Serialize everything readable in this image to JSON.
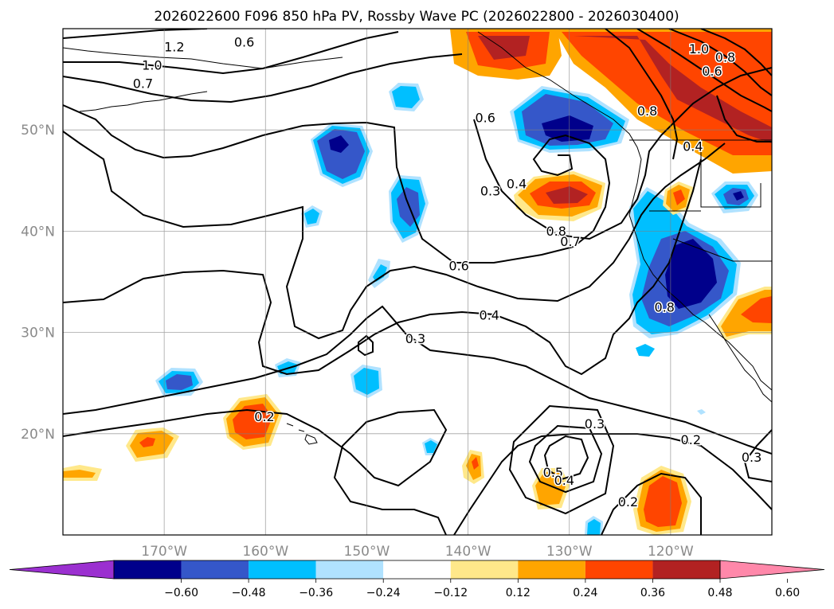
{
  "title": "2026022600 F096 850 hPa PV, Rossby Wave PC (2026022800 - 2026030400)",
  "map": {
    "lon_range": [
      -180,
      -110
    ],
    "lat_range": [
      10,
      60
    ],
    "lon_ticks": [
      "170°W",
      "160°W",
      "150°W",
      "140°W",
      "130°W",
      "120°W"
    ],
    "lat_ticks": [
      "20°N",
      "30°N",
      "40°N",
      "50°N"
    ],
    "grid": true
  },
  "colorbar": {
    "ticks": [
      "−0.60",
      "−0.48",
      "−0.36",
      "−0.24",
      "−0.12",
      "0.12",
      "0.24",
      "0.36",
      "0.48",
      "0.60"
    ],
    "colors": [
      "#9b30d0",
      "#00008b",
      "#3557c9",
      "#00bfff",
      "#b0e2ff",
      "#ffffff",
      "#ffe88a",
      "#ffa500",
      "#ff4500",
      "#b22222",
      "#ff88aa"
    ],
    "extend": "both"
  },
  "contour_labels": [
    {
      "text": "1.2",
      "lon": -169,
      "lat": 58.1
    },
    {
      "text": "0.6",
      "lon": -162.1,
      "lat": 58.6
    },
    {
      "text": "1.0",
      "lon": -171.2,
      "lat": 56.3
    },
    {
      "text": "0.7",
      "lon": -172.1,
      "lat": 54.5
    },
    {
      "text": "0.6",
      "lon": -138.3,
      "lat": 51.1
    },
    {
      "text": "0.3",
      "lon": -137.8,
      "lat": 43.9
    },
    {
      "text": "0.4",
      "lon": -135.2,
      "lat": 44.6
    },
    {
      "text": "0.8",
      "lon": -131.3,
      "lat": 39.9
    },
    {
      "text": "0.7",
      "lon": -129.9,
      "lat": 38.9
    },
    {
      "text": "0.6",
      "lon": -140.9,
      "lat": 36.5
    },
    {
      "text": "0.4",
      "lon": -137.9,
      "lat": 31.6
    },
    {
      "text": "0.3",
      "lon": -145.2,
      "lat": 29.3
    },
    {
      "text": "1.0",
      "lon": -117.2,
      "lat": 57.9
    },
    {
      "text": "0.8",
      "lon": -114.6,
      "lat": 57.1
    },
    {
      "text": "0.6",
      "lon": -115.9,
      "lat": 55.7
    },
    {
      "text": "0.8",
      "lon": -122.3,
      "lat": 51.8
    },
    {
      "text": "0.4",
      "lon": -117.8,
      "lat": 48.3
    },
    {
      "text": "0.8",
      "lon": -120.6,
      "lat": 32.4
    },
    {
      "text": "0.2",
      "lon": -160.1,
      "lat": 21.6
    },
    {
      "text": "0.3",
      "lon": -127.5,
      "lat": 20.9
    },
    {
      "text": "0.2",
      "lon": -118,
      "lat": 19.3
    },
    {
      "text": "0.3",
      "lon": -112,
      "lat": 17.6
    },
    {
      "text": "0.5",
      "lon": -131.6,
      "lat": 16.1
    },
    {
      "text": "0.4",
      "lon": -130.5,
      "lat": 15.3
    },
    {
      "text": "0.2",
      "lon": -124.2,
      "lat": 13.2
    }
  ]
}
